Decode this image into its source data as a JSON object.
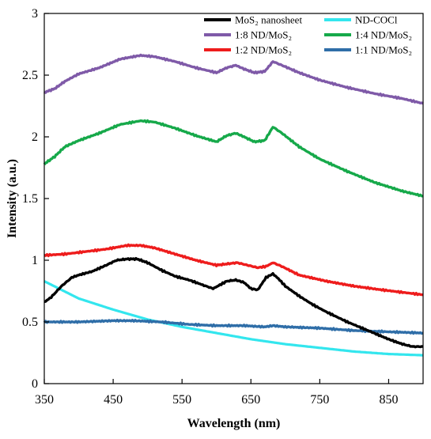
{
  "chart_data": {
    "type": "line",
    "title": "",
    "xlabel": "Wavelength (nm)",
    "ylabel": "Intensity (a.u.)",
    "xlim": [
      350,
      900
    ],
    "ylim": [
      0,
      3
    ],
    "x_ticks": [
      "350",
      "450",
      "550",
      "650",
      "750",
      "850"
    ],
    "y_ticks": [
      "0",
      "0.5",
      "1",
      "1.5",
      "2",
      "2.5",
      "3"
    ],
    "grid": false,
    "legend": "top-right, two columns, inside plot",
    "series": [
      {
        "name": "MoS₂ nanosheet",
        "color": "#000000",
        "x": [
          350,
          360,
          375,
          390,
          400,
          420,
          440,
          455,
          470,
          485,
          500,
          520,
          540,
          560,
          580,
          595,
          605,
          615,
          628,
          640,
          650,
          660,
          672,
          682,
          690,
          700,
          720,
          740,
          760,
          790,
          820,
          850,
          870,
          885,
          900
        ],
        "y": [
          0.66,
          0.7,
          0.79,
          0.86,
          0.88,
          0.91,
          0.96,
          1.0,
          1.01,
          1.01,
          0.98,
          0.92,
          0.87,
          0.84,
          0.8,
          0.77,
          0.8,
          0.83,
          0.84,
          0.82,
          0.77,
          0.76,
          0.86,
          0.89,
          0.85,
          0.79,
          0.71,
          0.64,
          0.58,
          0.5,
          0.43,
          0.36,
          0.32,
          0.3,
          0.3
        ]
      },
      {
        "name": "ND-COCl",
        "color": "#33e6ee",
        "x": [
          350,
          375,
          400,
          450,
          500,
          550,
          600,
          650,
          700,
          750,
          800,
          850,
          900
        ],
        "y": [
          0.83,
          0.76,
          0.69,
          0.6,
          0.52,
          0.46,
          0.41,
          0.36,
          0.32,
          0.29,
          0.26,
          0.24,
          0.23
        ]
      },
      {
        "name": "1:8 ND/MoS₂",
        "color": "#7f5aa8",
        "x": [
          350,
          365,
          380,
          400,
          430,
          460,
          490,
          510,
          540,
          570,
          600,
          615,
          628,
          640,
          655,
          670,
          682,
          695,
          720,
          750,
          790,
          830,
          870,
          900
        ],
        "y": [
          2.36,
          2.39,
          2.45,
          2.51,
          2.56,
          2.63,
          2.66,
          2.65,
          2.61,
          2.56,
          2.52,
          2.56,
          2.58,
          2.55,
          2.52,
          2.53,
          2.61,
          2.58,
          2.52,
          2.46,
          2.4,
          2.35,
          2.31,
          2.27
        ]
      },
      {
        "name": "1:4 ND/MoS₂",
        "color": "#16a94a",
        "x": [
          350,
          365,
          380,
          400,
          430,
          460,
          490,
          510,
          540,
          570,
          600,
          615,
          628,
          640,
          655,
          670,
          682,
          695,
          720,
          750,
          790,
          830,
          870,
          900
        ],
        "y": [
          1.78,
          1.84,
          1.92,
          1.97,
          2.03,
          2.1,
          2.13,
          2.12,
          2.07,
          2.01,
          1.96,
          2.01,
          2.03,
          2.0,
          1.96,
          1.97,
          2.08,
          2.03,
          1.92,
          1.82,
          1.72,
          1.63,
          1.56,
          1.52
        ]
      },
      {
        "name": "1:2 ND/MoS₂",
        "color": "#ee1c1c",
        "x": [
          350,
          380,
          410,
          440,
          470,
          490,
          510,
          540,
          570,
          600,
          615,
          630,
          645,
          660,
          672,
          682,
          695,
          720,
          760,
          800,
          840,
          870,
          900
        ],
        "y": [
          1.04,
          1.05,
          1.07,
          1.09,
          1.12,
          1.12,
          1.1,
          1.05,
          1.0,
          0.96,
          0.97,
          0.98,
          0.96,
          0.94,
          0.95,
          0.98,
          0.95,
          0.88,
          0.83,
          0.79,
          0.76,
          0.74,
          0.72
        ]
      },
      {
        "name": "1:1 ND/MoS₂",
        "color": "#2f6ea8",
        "x": [
          350,
          400,
          450,
          480,
          520,
          560,
          600,
          640,
          670,
          682,
          700,
          750,
          800,
          850,
          900
        ],
        "y": [
          0.5,
          0.5,
          0.51,
          0.51,
          0.5,
          0.48,
          0.47,
          0.47,
          0.46,
          0.47,
          0.46,
          0.45,
          0.43,
          0.42,
          0.41
        ]
      }
    ]
  }
}
